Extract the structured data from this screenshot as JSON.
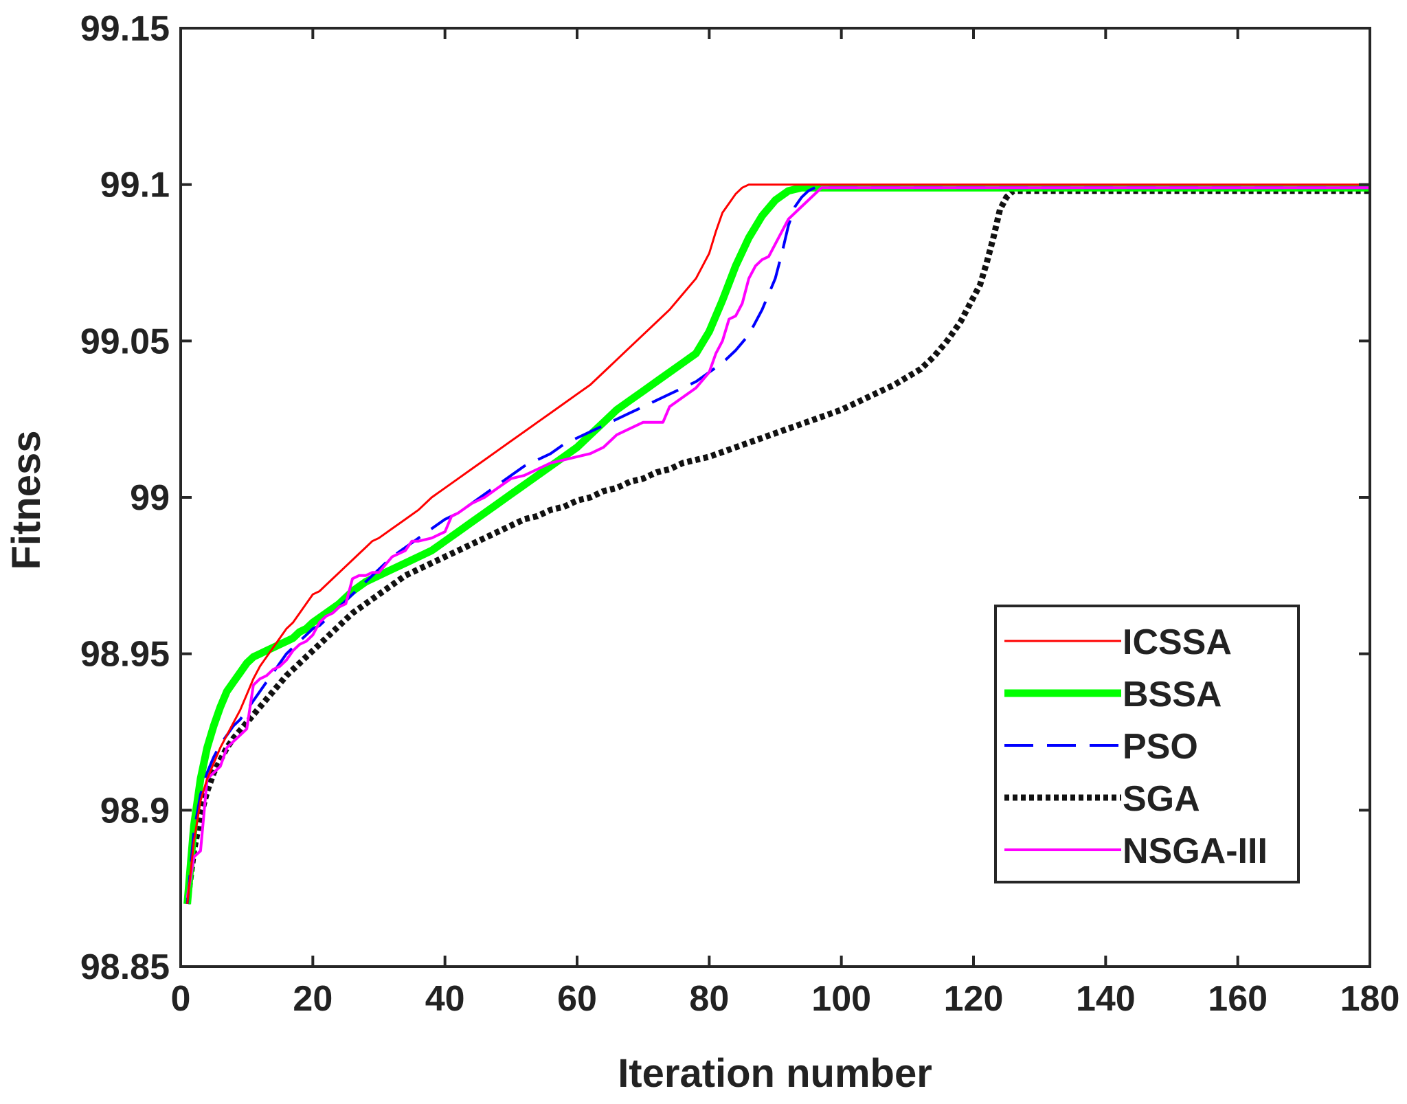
{
  "chart_data": {
    "type": "line",
    "title": "",
    "xlabel": "Iteration number",
    "ylabel": "Fitness",
    "xlim": [
      0,
      180
    ],
    "ylim": [
      98.85,
      99.15
    ],
    "xticks": [
      0,
      20,
      40,
      60,
      80,
      100,
      120,
      140,
      160,
      180
    ],
    "xtick_labels": [
      "0",
      "20",
      "40",
      "60",
      "80",
      "100",
      "120",
      "140",
      "160",
      "180"
    ],
    "yticks": [
      98.85,
      98.9,
      98.95,
      99,
      99.05,
      99.1,
      99.15
    ],
    "ytick_labels": [
      "98.85",
      "98.9",
      "98.95",
      "99",
      "99.05",
      "99.1",
      "99.15"
    ],
    "grid": false,
    "legend_position": "lower-right",
    "series": [
      {
        "name": "ICSSA",
        "color": "#ff0000",
        "style": "solid",
        "width": 3,
        "x": [
          1,
          2,
          3,
          4,
          5,
          6,
          7,
          8,
          9,
          10,
          11,
          12,
          13,
          14,
          15,
          16,
          17,
          18,
          19,
          20,
          21,
          22,
          23,
          24,
          25,
          26,
          27,
          28,
          29,
          30,
          32,
          34,
          36,
          38,
          40,
          42,
          44,
          46,
          48,
          50,
          52,
          54,
          56,
          58,
          60,
          62,
          64,
          66,
          68,
          70,
          72,
          74,
          76,
          78,
          80,
          81,
          82,
          83,
          84,
          85,
          86,
          87,
          88,
          180
        ],
        "y": [
          98.87,
          98.89,
          98.903,
          98.91,
          98.915,
          98.92,
          98.924,
          98.928,
          98.932,
          98.937,
          98.942,
          98.946,
          98.949,
          98.952,
          98.955,
          98.958,
          98.96,
          98.963,
          98.966,
          98.969,
          98.97,
          98.972,
          98.974,
          98.976,
          98.978,
          98.98,
          98.982,
          98.984,
          98.986,
          98.987,
          98.99,
          98.993,
          98.996,
          99.0,
          99.003,
          99.006,
          99.009,
          99.012,
          99.015,
          99.018,
          99.021,
          99.024,
          99.027,
          99.03,
          99.033,
          99.036,
          99.04,
          99.044,
          99.048,
          99.052,
          99.056,
          99.06,
          99.065,
          99.07,
          99.078,
          99.085,
          99.091,
          99.094,
          99.097,
          99.099,
          99.1,
          99.1,
          99.1,
          99.1
        ]
      },
      {
        "name": "BSSA",
        "color": "#00ff00",
        "style": "solid",
        "width": 11,
        "x": [
          1,
          2,
          3,
          4,
          5,
          6,
          7,
          8,
          9,
          10,
          11,
          12,
          13,
          14,
          15,
          16,
          17,
          18,
          19,
          20,
          22,
          24,
          26,
          28,
          30,
          32,
          34,
          36,
          38,
          40,
          42,
          44,
          46,
          48,
          50,
          52,
          54,
          56,
          58,
          60,
          62,
          64,
          66,
          68,
          70,
          72,
          74,
          76,
          78,
          80,
          82,
          84,
          86,
          88,
          90,
          92,
          94,
          180
        ],
        "y": [
          98.87,
          98.895,
          98.91,
          98.92,
          98.927,
          98.933,
          98.938,
          98.941,
          98.944,
          98.947,
          98.949,
          98.95,
          98.951,
          98.952,
          98.953,
          98.954,
          98.955,
          98.957,
          98.958,
          98.96,
          98.963,
          98.966,
          98.97,
          98.973,
          98.975,
          98.977,
          98.979,
          98.981,
          98.983,
          98.986,
          98.989,
          98.992,
          98.995,
          98.998,
          99.001,
          99.004,
          99.007,
          99.01,
          99.013,
          99.016,
          99.02,
          99.024,
          99.028,
          99.031,
          99.034,
          99.037,
          99.04,
          99.043,
          99.046,
          99.053,
          99.063,
          99.074,
          99.083,
          99.09,
          99.095,
          99.098,
          99.099,
          99.099
        ]
      },
      {
        "name": "PSO",
        "color": "#0000ff",
        "style": "dashed",
        "width": 4,
        "x": [
          1,
          2,
          3,
          4,
          5,
          6,
          7,
          8,
          9,
          10,
          11,
          12,
          13,
          14,
          15,
          16,
          17,
          18,
          19,
          20,
          21,
          22,
          24,
          26,
          28,
          30,
          32,
          34,
          36,
          38,
          40,
          42,
          44,
          46,
          48,
          50,
          52,
          54,
          56,
          58,
          60,
          62,
          64,
          66,
          68,
          70,
          72,
          74,
          76,
          78,
          80,
          82,
          84,
          86,
          88,
          90,
          91,
          92,
          93,
          94,
          95,
          96,
          180
        ],
        "y": [
          98.87,
          98.893,
          98.905,
          98.912,
          98.917,
          98.921,
          98.924,
          98.927,
          98.929,
          98.932,
          98.935,
          98.938,
          98.941,
          98.944,
          98.947,
          98.95,
          98.952,
          98.954,
          98.956,
          98.958,
          98.959,
          98.961,
          98.965,
          98.969,
          98.973,
          98.977,
          98.981,
          98.984,
          98.987,
          98.99,
          98.993,
          98.995,
          98.998,
          99.001,
          99.004,
          99.007,
          99.01,
          99.012,
          99.014,
          99.017,
          99.019,
          99.021,
          99.023,
          99.025,
          99.027,
          99.029,
          99.031,
          99.033,
          99.035,
          99.037,
          99.04,
          99.043,
          99.047,
          99.052,
          99.06,
          99.07,
          99.078,
          99.087,
          99.093,
          99.096,
          99.098,
          99.099,
          99.099
        ]
      },
      {
        "name": "SGA",
        "color": "#111111",
        "style": "dotted",
        "width": 9,
        "x": [
          1,
          2,
          3,
          4,
          5,
          6,
          7,
          8,
          10,
          12,
          14,
          16,
          18,
          20,
          22,
          24,
          26,
          28,
          30,
          32,
          34,
          36,
          38,
          40,
          42,
          44,
          46,
          48,
          50,
          52,
          54,
          56,
          58,
          60,
          62,
          64,
          66,
          68,
          70,
          72,
          74,
          76,
          78,
          80,
          84,
          88,
          92,
          96,
          100,
          104,
          108,
          112,
          114,
          116,
          118,
          120,
          121,
          122,
          123,
          124,
          125,
          126,
          180
        ],
        "y": [
          98.87,
          98.887,
          98.898,
          98.906,
          98.912,
          98.916,
          98.92,
          98.923,
          98.928,
          98.933,
          98.938,
          98.943,
          98.947,
          98.951,
          98.955,
          98.959,
          98.963,
          98.966,
          98.969,
          98.972,
          98.975,
          98.977,
          98.979,
          98.981,
          98.983,
          98.985,
          98.987,
          98.989,
          98.991,
          98.993,
          98.994,
          98.996,
          98.997,
          98.999,
          99.0,
          99.002,
          99.003,
          99.005,
          99.006,
          99.008,
          99.009,
          99.011,
          99.012,
          99.013,
          99.016,
          99.019,
          99.022,
          99.025,
          99.028,
          99.032,
          99.036,
          99.041,
          99.045,
          99.05,
          99.056,
          99.064,
          99.068,
          99.075,
          99.083,
          99.092,
          99.096,
          99.098,
          99.098
        ]
      },
      {
        "name": "NSGA-III",
        "color": "#ff00ff",
        "style": "solid",
        "width": 4,
        "x": [
          1,
          2,
          3,
          4,
          5,
          6,
          7,
          8,
          9,
          10,
          11,
          12,
          13,
          14,
          15,
          16,
          17,
          18,
          19,
          20,
          21,
          22,
          23,
          24,
          25,
          26,
          27,
          28,
          29,
          30,
          32,
          34,
          35,
          36,
          38,
          39,
          40,
          41,
          42,
          44,
          46,
          48,
          50,
          52,
          54,
          56,
          58,
          60,
          62,
          64,
          65,
          66,
          68,
          70,
          72,
          73,
          74,
          76,
          78,
          80,
          81,
          82,
          83,
          84,
          85,
          86,
          87,
          88,
          89,
          90,
          92,
          94,
          96,
          97,
          180
        ],
        "y": [
          98.872,
          98.885,
          98.887,
          98.91,
          98.912,
          98.914,
          98.92,
          98.922,
          98.924,
          98.926,
          98.94,
          98.942,
          98.943,
          98.945,
          98.946,
          98.948,
          98.951,
          98.953,
          98.954,
          98.956,
          98.96,
          98.962,
          98.963,
          98.965,
          98.966,
          98.974,
          98.975,
          98.975,
          98.976,
          98.976,
          98.981,
          98.983,
          98.986,
          98.986,
          98.987,
          98.988,
          98.989,
          98.994,
          98.995,
          98.998,
          99.0,
          99.003,
          99.006,
          99.007,
          99.009,
          99.011,
          99.012,
          99.013,
          99.014,
          99.016,
          99.018,
          99.02,
          99.022,
          99.024,
          99.024,
          99.024,
          99.029,
          99.032,
          99.035,
          99.04,
          99.046,
          99.05,
          99.057,
          99.058,
          99.062,
          99.07,
          99.074,
          99.076,
          99.077,
          99.081,
          99.089,
          99.093,
          99.097,
          99.099,
          99.099
        ]
      }
    ]
  }
}
